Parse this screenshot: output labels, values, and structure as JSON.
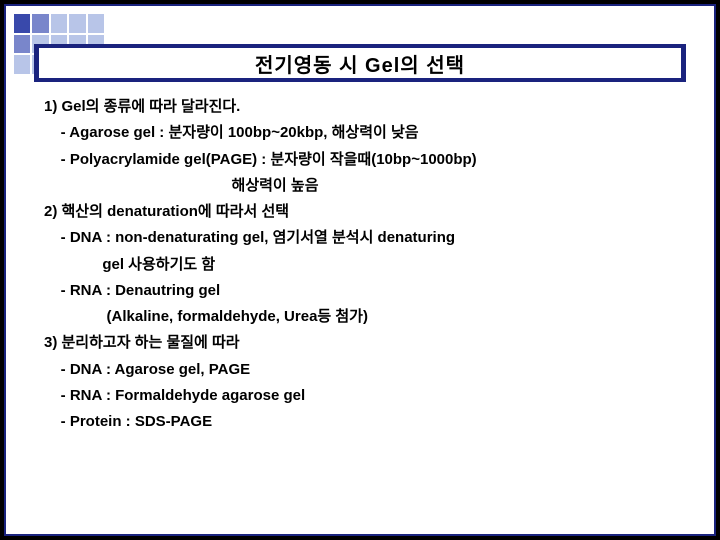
{
  "colors": {
    "border": "#1a237e",
    "titleBarBg": "#1a237e",
    "titleInnerBg": "#ffffff",
    "slideBg": "#ffffff",
    "decorLight": "#b8c5e8",
    "decorMed": "#7986cb",
    "decorDark": "#3949ab",
    "textColor": "#000000"
  },
  "typography": {
    "titleFontSize": 20,
    "bodyFontSize": 15,
    "bodyLineHeight": 1.75,
    "fontWeight": "bold"
  },
  "title": "전기영동 시 Gel의 선택",
  "body": {
    "l1": "1) Gel의 종류에 따라 달라진다.",
    "l2": "    - Agarose gel : 분자량이 100bp~20kbp, 해상력이 낮음",
    "l3": "    - Polyacrylamide gel(PAGE) : 분자량이 작을때(10bp~1000bp)",
    "l4": "                                             해상력이 높음",
    "l5": "2) 핵산의 denaturation에 따라서 선택",
    "l6": "    - DNA : non-denaturating gel, 염기서열 분석시 denaturing",
    "l7": "              gel 사용하기도 함",
    "l8": "    - RNA : Denautring gel",
    "l9": "               (Alkaline, formaldehyde, Urea등 첨가)",
    "l10": "3) 분리하고자 하는 물질에 따라",
    "l11": "    - DNA : Agarose gel, PAGE",
    "l12": "    - RNA : Formaldehyde agarose gel",
    "l13": "    - Protein : SDS-PAGE"
  }
}
